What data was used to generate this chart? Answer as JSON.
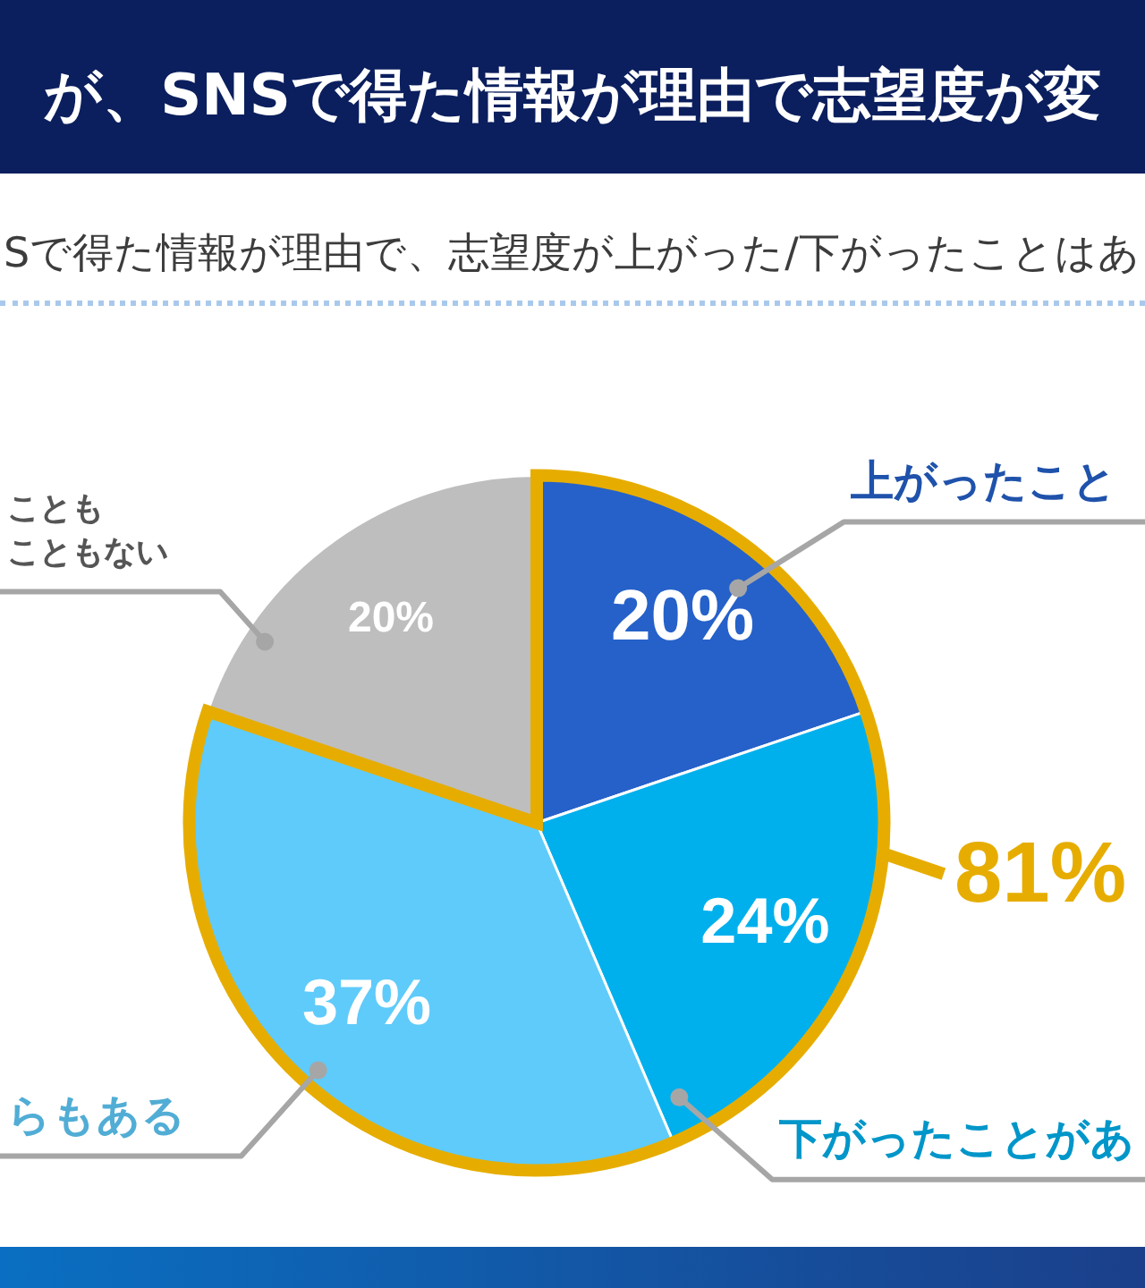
{
  "chart_data": {
    "type": "pie",
    "title": "が、SNSで得た情報が理由で志望度が変",
    "subtitle": "Sで得た情報が理由で、志望度が上がった/下がったことはあ",
    "categories": [
      "上がったこと",
      "下がったことがあ",
      "らもある",
      "こともこともない"
    ],
    "values": [
      20,
      24,
      37,
      20
    ],
    "colors": [
      "#2561c9",
      "#00b0ec",
      "#5fcbfa",
      "#bebebe"
    ],
    "value_labels": [
      "20%",
      "24%",
      "37%",
      "20%"
    ],
    "annotations": [
      "81%"
    ]
  }
}
